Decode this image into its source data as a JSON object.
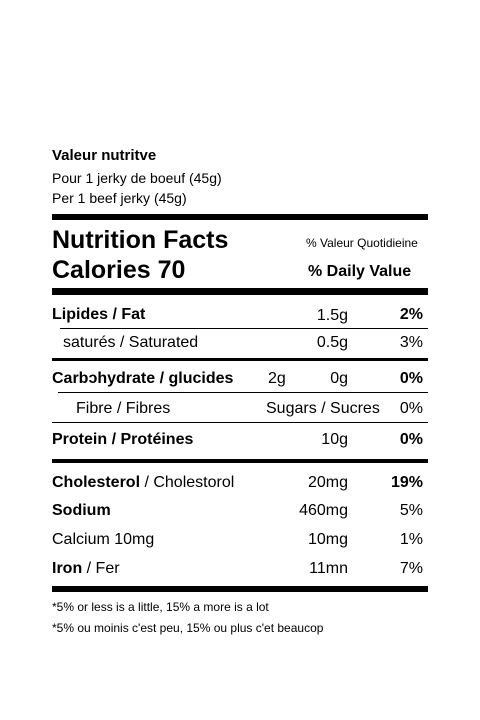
{
  "header": {
    "title": "Valeur nutritve",
    "serving_fr": "Pour 1 jerky de boeuf (45g)",
    "serving_en": "Per 1 beef jerky (45g)"
  },
  "facts": {
    "title": "Nutrition Facts",
    "dv_fr": "% Valeur Quotidieine",
    "calories": "Calories 70",
    "dv_en": "% Daily Value"
  },
  "rows": {
    "fat": {
      "label": "Lipides / Fat",
      "amount": "1.5g",
      "dv": "2%"
    },
    "saturated": {
      "label": "saturés / Saturated",
      "amount": "0.5g",
      "dv": "3%"
    },
    "carb": {
      "label": "Carbɔhydrate / glucides",
      "amount1": "2g",
      "amount2": "0g",
      "dv": "0%"
    },
    "fibre": {
      "label": "Fibre / Fibres",
      "sugars": "Sugars / Sucres",
      "dv": "0%"
    },
    "protein": {
      "label": "Protein / Protéines",
      "amount": "10g",
      "dv": "0%"
    },
    "cholesterol": {
      "label_bold": "Cholesterol",
      "label_rest": " / Cholestorol",
      "amount": "20mg",
      "dv": "19%"
    },
    "sodium": {
      "label": "Sodium",
      "amount": "460mg",
      "dv": "5%"
    },
    "calcium": {
      "label": "Calcium  10mg",
      "amount": "10mg",
      "dv": "1%"
    },
    "iron": {
      "label_bold": "Iron",
      "label_rest": " / Fer",
      "amount": "11mn",
      "dv": "7%"
    }
  },
  "footnotes": {
    "en": "*5% or less is a little, 15% a more is a lot",
    "fr": "*5% ou moinis c'est peu, 15% ou plus c'et beaucop"
  }
}
